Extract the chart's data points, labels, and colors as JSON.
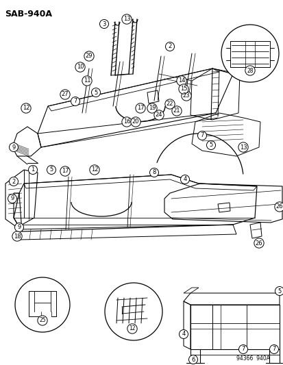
{
  "title": "SAB-940A",
  "watermark": "94366  940A",
  "bg_color": "#ffffff",
  "figsize": [
    4.14,
    5.33
  ],
  "dpi": 100,
  "callout_r": 6.5
}
